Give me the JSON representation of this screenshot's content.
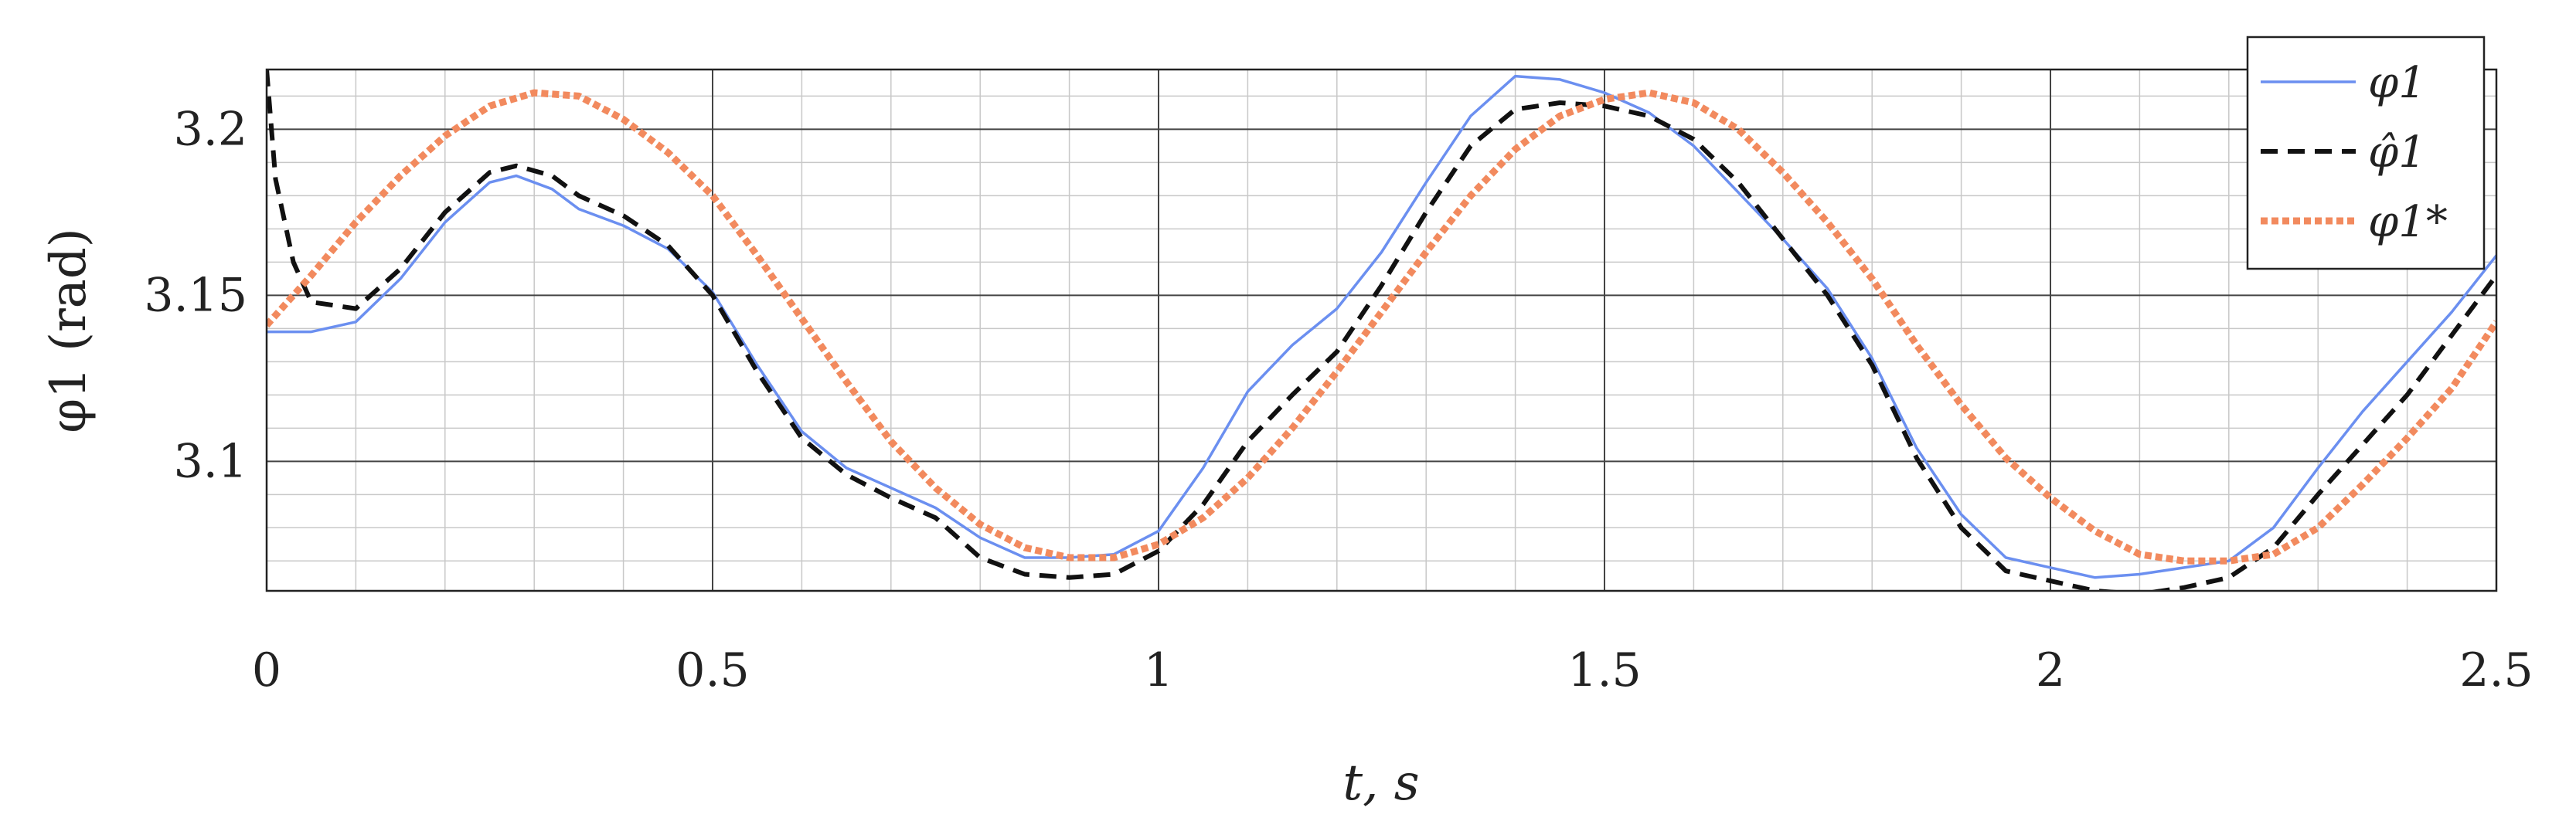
{
  "chart_data": {
    "type": "line",
    "xlabel": "t, s",
    "ylabel": "φ1 (rad)",
    "xlim": [
      0,
      2.5
    ],
    "ylim": [
      3.061,
      3.218
    ],
    "xticks": [
      0,
      0.5,
      1,
      1.5,
      2,
      2.5
    ],
    "xtick_labels": [
      "0",
      "0.5",
      "1",
      "1.5",
      "2",
      "2.5"
    ],
    "yticks": [
      3.1,
      3.15,
      3.2
    ],
    "ytick_labels": [
      "3.1",
      "3.15",
      "3.2"
    ],
    "grid": true,
    "minor_grid": true,
    "legend_position": "top-right",
    "series": [
      {
        "name": "φ1",
        "color": "#6b8ff0",
        "style": "solid",
        "x": [
          0,
          0.05,
          0.1,
          0.15,
          0.2,
          0.25,
          0.28,
          0.32,
          0.35,
          0.4,
          0.45,
          0.5,
          0.55,
          0.6,
          0.65,
          0.7,
          0.75,
          0.8,
          0.85,
          0.9,
          0.95,
          1.0,
          1.05,
          1.1,
          1.15,
          1.2,
          1.25,
          1.3,
          1.35,
          1.4,
          1.45,
          1.5,
          1.55,
          1.6,
          1.65,
          1.7,
          1.75,
          1.8,
          1.85,
          1.9,
          1.95,
          2.0,
          2.05,
          2.1,
          2.15,
          2.2,
          2.25,
          2.3,
          2.35,
          2.4,
          2.45,
          2.5
        ],
        "y": [
          3.139,
          3.139,
          3.142,
          3.155,
          3.172,
          3.184,
          3.186,
          3.182,
          3.176,
          3.171,
          3.164,
          3.151,
          3.129,
          3.109,
          3.098,
          3.092,
          3.086,
          3.077,
          3.071,
          3.071,
          3.072,
          3.079,
          3.098,
          3.121,
          3.135,
          3.146,
          3.163,
          3.184,
          3.204,
          3.216,
          3.215,
          3.211,
          3.205,
          3.195,
          3.181,
          3.167,
          3.152,
          3.131,
          3.104,
          3.084,
          3.071,
          3.068,
          3.065,
          3.066,
          3.068,
          3.07,
          3.08,
          3.098,
          3.115,
          3.13,
          3.145,
          3.162
        ]
      },
      {
        "name": "φ̂1",
        "color": "#111111",
        "style": "dashed",
        "x": [
          0,
          0.01,
          0.03,
          0.05,
          0.1,
          0.15,
          0.2,
          0.25,
          0.28,
          0.32,
          0.35,
          0.4,
          0.45,
          0.5,
          0.55,
          0.6,
          0.65,
          0.7,
          0.75,
          0.8,
          0.85,
          0.9,
          0.95,
          1.0,
          1.05,
          1.1,
          1.15,
          1.2,
          1.25,
          1.3,
          1.35,
          1.4,
          1.45,
          1.5,
          1.55,
          1.6,
          1.65,
          1.7,
          1.75,
          1.8,
          1.85,
          1.9,
          1.95,
          2.0,
          2.05,
          2.1,
          2.15,
          2.2,
          2.25,
          2.3,
          2.35,
          2.4,
          2.45,
          2.5
        ],
        "y": [
          3.218,
          3.185,
          3.16,
          3.148,
          3.146,
          3.158,
          3.175,
          3.187,
          3.189,
          3.186,
          3.18,
          3.174,
          3.165,
          3.15,
          3.127,
          3.107,
          3.096,
          3.089,
          3.083,
          3.071,
          3.066,
          3.065,
          3.066,
          3.073,
          3.087,
          3.106,
          3.12,
          3.133,
          3.153,
          3.175,
          3.195,
          3.206,
          3.208,
          3.207,
          3.204,
          3.197,
          3.184,
          3.167,
          3.15,
          3.129,
          3.101,
          3.08,
          3.067,
          3.064,
          3.061,
          3.06,
          3.062,
          3.065,
          3.074,
          3.09,
          3.105,
          3.12,
          3.138,
          3.156
        ]
      },
      {
        "name": "φ1*",
        "color": "#f28a5e",
        "style": "dotted",
        "x": [
          0,
          0.05,
          0.1,
          0.15,
          0.2,
          0.25,
          0.3,
          0.35,
          0.4,
          0.45,
          0.5,
          0.55,
          0.6,
          0.65,
          0.7,
          0.75,
          0.8,
          0.85,
          0.9,
          0.95,
          1.0,
          1.05,
          1.1,
          1.15,
          1.2,
          1.25,
          1.3,
          1.35,
          1.4,
          1.45,
          1.5,
          1.55,
          1.6,
          1.65,
          1.7,
          1.75,
          1.8,
          1.85,
          1.9,
          1.95,
          2.0,
          2.05,
          2.1,
          2.15,
          2.2,
          2.25,
          2.3,
          2.35,
          2.4,
          2.45,
          2.5
        ],
        "y": [
          3.141,
          3.156,
          3.172,
          3.186,
          3.198,
          3.207,
          3.211,
          3.21,
          3.203,
          3.193,
          3.18,
          3.162,
          3.143,
          3.124,
          3.106,
          3.092,
          3.081,
          3.074,
          3.071,
          3.071,
          3.075,
          3.083,
          3.095,
          3.11,
          3.127,
          3.145,
          3.163,
          3.18,
          3.194,
          3.204,
          3.209,
          3.211,
          3.208,
          3.2,
          3.187,
          3.172,
          3.155,
          3.135,
          3.117,
          3.101,
          3.089,
          3.079,
          3.072,
          3.07,
          3.07,
          3.072,
          3.08,
          3.093,
          3.107,
          3.122,
          3.142
        ]
      }
    ]
  }
}
